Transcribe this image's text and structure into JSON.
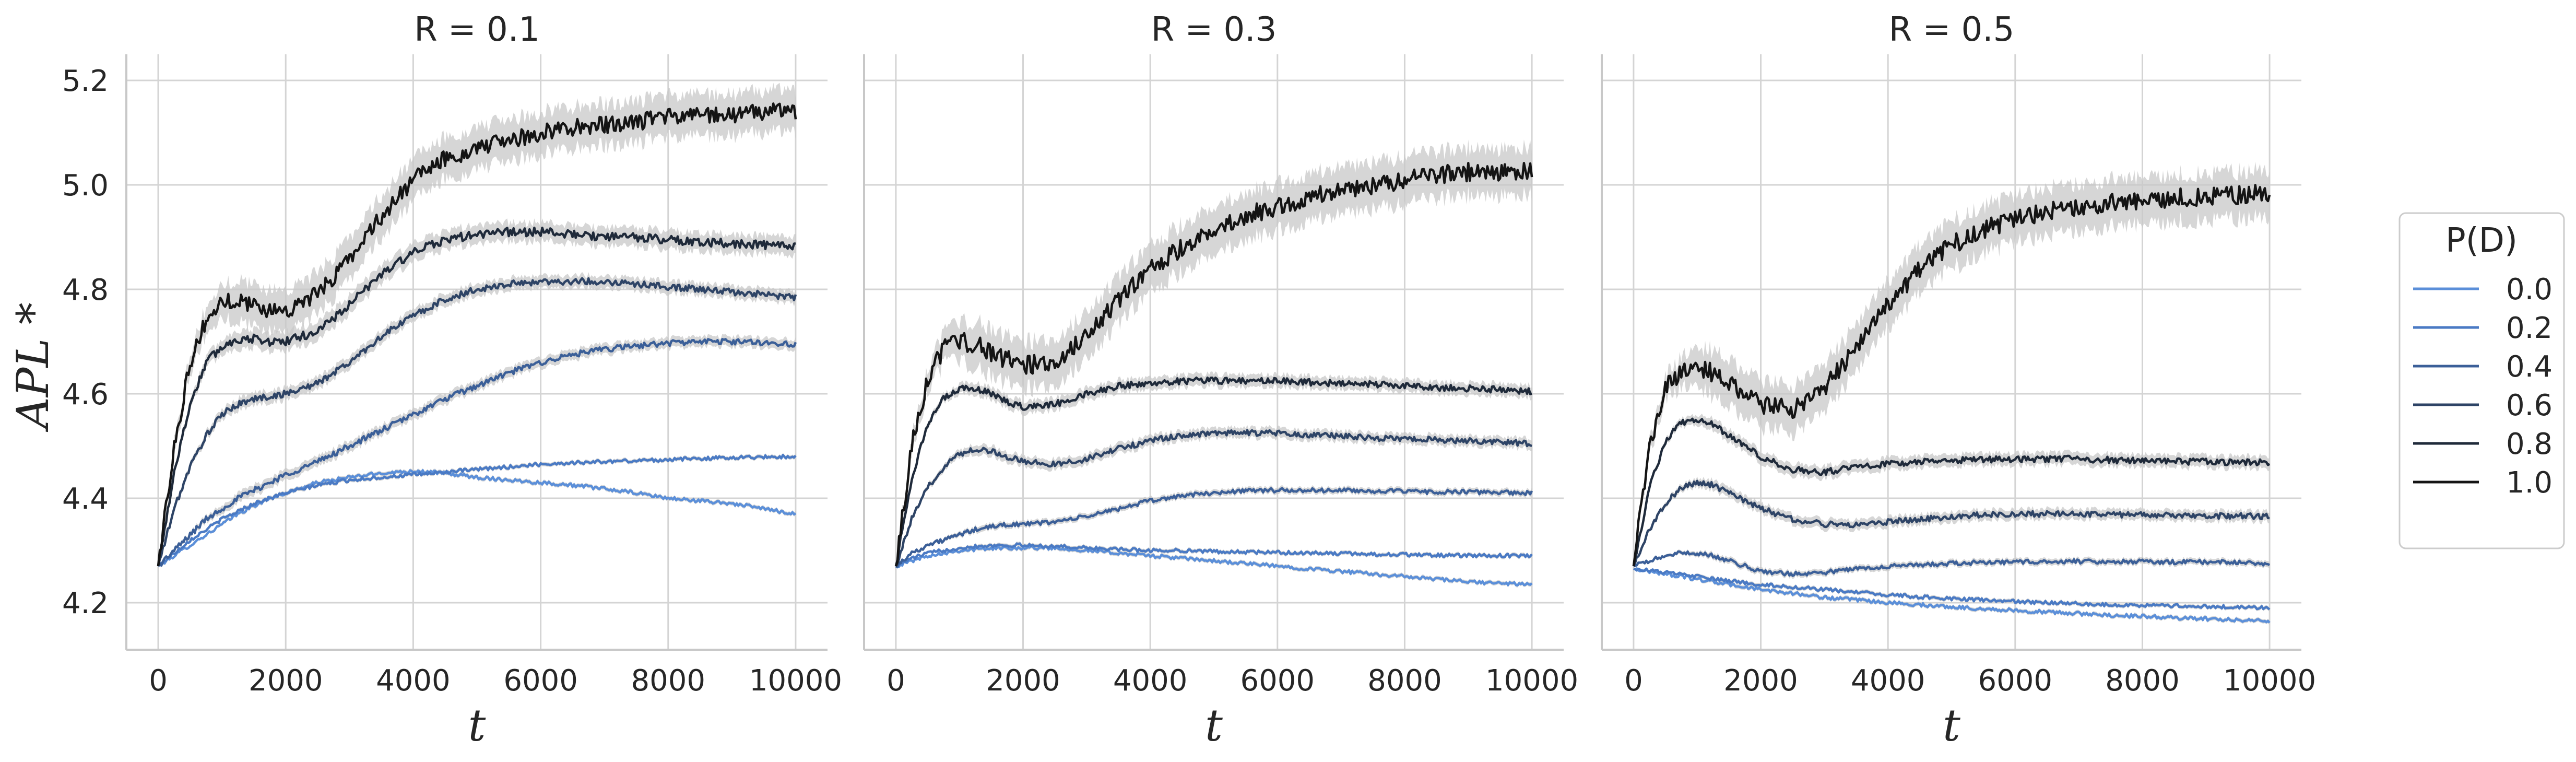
{
  "chart_data": [
    {
      "type": "line",
      "title": "R = 0.1",
      "xlabel": "t",
      "ylabel": "APL *",
      "xlim": [
        -500,
        10500
      ],
      "ylim": [
        4.11,
        5.25
      ],
      "xticks": [
        "0",
        "2000",
        "4000",
        "6000",
        "8000",
        "10000"
      ],
      "yticks": [
        "4.2",
        "4.4",
        "4.6",
        "4.8",
        "5.0",
        "5.2"
      ],
      "x": [
        0,
        250,
        500,
        750,
        1000,
        1250,
        1500,
        1750,
        2000,
        2500,
        3000,
        3500,
        4000,
        4500,
        5000,
        5500,
        6000,
        6500,
        7000,
        7500,
        8000,
        8500,
        9000,
        9500,
        10000
      ],
      "series": [
        {
          "name": "0.0",
          "values": [
            4.27,
            4.29,
            4.31,
            4.33,
            4.35,
            4.37,
            4.385,
            4.4,
            4.41,
            4.43,
            4.44,
            4.448,
            4.452,
            4.448,
            4.44,
            4.435,
            4.43,
            4.425,
            4.418,
            4.41,
            4.4,
            4.395,
            4.39,
            4.38,
            4.37
          ],
          "band": 0.004
        },
        {
          "name": "0.2",
          "values": [
            4.27,
            4.295,
            4.32,
            4.34,
            4.36,
            4.375,
            4.39,
            4.4,
            4.41,
            4.425,
            4.435,
            4.44,
            4.445,
            4.45,
            4.455,
            4.46,
            4.465,
            4.468,
            4.47,
            4.472,
            4.474,
            4.476,
            4.478,
            4.479,
            4.48
          ],
          "band": 0.004
        },
        {
          "name": "0.4",
          "values": [
            4.27,
            4.3,
            4.33,
            4.36,
            4.38,
            4.4,
            4.415,
            4.43,
            4.445,
            4.47,
            4.5,
            4.53,
            4.56,
            4.59,
            4.615,
            4.64,
            4.66,
            4.675,
            4.685,
            4.692,
            4.697,
            4.7,
            4.7,
            4.698,
            4.695
          ],
          "band": 0.01
        },
        {
          "name": "0.6",
          "values": [
            4.27,
            4.38,
            4.46,
            4.52,
            4.56,
            4.58,
            4.59,
            4.595,
            4.6,
            4.62,
            4.66,
            4.71,
            4.75,
            4.78,
            4.8,
            4.81,
            4.815,
            4.815,
            4.815,
            4.81,
            4.805,
            4.8,
            4.795,
            4.79,
            4.785
          ],
          "band": 0.012
        },
        {
          "name": "0.8",
          "values": [
            4.27,
            4.45,
            4.58,
            4.66,
            4.69,
            4.705,
            4.705,
            4.7,
            4.7,
            4.72,
            4.77,
            4.83,
            4.87,
            4.895,
            4.905,
            4.91,
            4.91,
            4.905,
            4.9,
            4.9,
            4.895,
            4.89,
            4.888,
            4.885,
            4.88
          ],
          "band": 0.018
        },
        {
          "name": "1.0",
          "values": [
            4.27,
            4.5,
            4.66,
            4.74,
            4.775,
            4.78,
            4.77,
            4.76,
            4.76,
            4.79,
            4.86,
            4.94,
            5.01,
            5.05,
            5.07,
            5.085,
            5.1,
            5.11,
            5.115,
            5.12,
            5.13,
            5.135,
            5.135,
            5.14,
            5.14
          ],
          "band": 0.04
        }
      ]
    },
    {
      "type": "line",
      "title": "R = 0.3",
      "xlabel": "t",
      "ylabel": "",
      "xlim": [
        -500,
        10500
      ],
      "ylim": [
        4.11,
        5.25
      ],
      "xticks": [
        "0",
        "2000",
        "4000",
        "6000",
        "8000",
        "10000"
      ],
      "yticks": [],
      "x": [
        0,
        250,
        500,
        750,
        1000,
        1250,
        1500,
        1750,
        2000,
        2500,
        3000,
        3500,
        4000,
        4500,
        5000,
        5500,
        6000,
        6500,
        7000,
        7500,
        8000,
        8500,
        9000,
        9500,
        10000
      ],
      "series": [
        {
          "name": "0.0",
          "values": [
            4.27,
            4.28,
            4.29,
            4.295,
            4.3,
            4.302,
            4.304,
            4.305,
            4.305,
            4.305,
            4.3,
            4.295,
            4.29,
            4.285,
            4.28,
            4.275,
            4.27,
            4.265,
            4.26,
            4.255,
            4.25,
            4.245,
            4.24,
            4.237,
            4.235
          ],
          "band": 0.004
        },
        {
          "name": "0.2",
          "values": [
            4.27,
            4.285,
            4.295,
            4.3,
            4.305,
            4.308,
            4.31,
            4.31,
            4.31,
            4.308,
            4.305,
            4.302,
            4.3,
            4.3,
            4.298,
            4.297,
            4.296,
            4.295,
            4.294,
            4.293,
            4.292,
            4.291,
            4.29,
            4.29,
            4.29
          ],
          "band": 0.004
        },
        {
          "name": "0.4",
          "values": [
            4.27,
            4.295,
            4.31,
            4.32,
            4.33,
            4.34,
            4.345,
            4.35,
            4.35,
            4.355,
            4.365,
            4.38,
            4.395,
            4.405,
            4.41,
            4.415,
            4.415,
            4.415,
            4.415,
            4.414,
            4.413,
            4.412,
            4.412,
            4.411,
            4.41
          ],
          "band": 0.006
        },
        {
          "name": "0.6",
          "values": [
            4.27,
            4.36,
            4.42,
            4.46,
            4.485,
            4.495,
            4.49,
            4.48,
            4.47,
            4.465,
            4.475,
            4.495,
            4.51,
            4.52,
            4.525,
            4.525,
            4.525,
            4.52,
            4.52,
            4.515,
            4.515,
            4.512,
            4.51,
            4.508,
            4.505
          ],
          "band": 0.01
        },
        {
          "name": "0.8",
          "values": [
            4.27,
            4.44,
            4.54,
            4.59,
            4.61,
            4.61,
            4.6,
            4.585,
            4.575,
            4.58,
            4.6,
            4.615,
            4.62,
            4.625,
            4.625,
            4.625,
            4.625,
            4.622,
            4.62,
            4.618,
            4.615,
            4.612,
            4.61,
            4.608,
            4.605
          ],
          "band": 0.012
        },
        {
          "name": "1.0",
          "values": [
            4.27,
            4.5,
            4.63,
            4.685,
            4.7,
            4.695,
            4.68,
            4.665,
            4.655,
            4.66,
            4.71,
            4.78,
            4.84,
            4.88,
            4.915,
            4.94,
            4.96,
            4.975,
            4.99,
            5.0,
            5.01,
            5.02,
            5.025,
            5.025,
            5.025
          ],
          "band": 0.045
        }
      ]
    },
    {
      "type": "line",
      "title": "R = 0.5",
      "xlabel": "t",
      "ylabel": "",
      "xlim": [
        -500,
        10500
      ],
      "ylim": [
        4.11,
        5.25
      ],
      "xticks": [
        "0",
        "2000",
        "4000",
        "6000",
        "8000",
        "10000"
      ],
      "yticks": [],
      "x": [
        0,
        250,
        500,
        750,
        1000,
        1250,
        1500,
        1750,
        2000,
        2500,
        3000,
        3500,
        4000,
        4500,
        5000,
        5500,
        6000,
        6500,
        7000,
        7500,
        8000,
        8500,
        9000,
        9500,
        10000
      ],
      "series": [
        {
          "name": "0.0",
          "values": [
            4.265,
            4.26,
            4.255,
            4.25,
            4.245,
            4.24,
            4.235,
            4.23,
            4.225,
            4.218,
            4.21,
            4.205,
            4.2,
            4.196,
            4.192,
            4.188,
            4.185,
            4.182,
            4.179,
            4.176,
            4.174,
            4.171,
            4.169,
            4.167,
            4.165
          ],
          "band": 0.004
        },
        {
          "name": "0.2",
          "values": [
            4.265,
            4.262,
            4.258,
            4.254,
            4.25,
            4.245,
            4.242,
            4.238,
            4.235,
            4.23,
            4.225,
            4.22,
            4.215,
            4.211,
            4.208,
            4.205,
            4.202,
            4.2,
            4.198,
            4.196,
            4.195,
            4.194,
            4.193,
            4.191,
            4.19
          ],
          "band": 0.004
        },
        {
          "name": "0.4",
          "values": [
            4.27,
            4.28,
            4.29,
            4.295,
            4.295,
            4.29,
            4.28,
            4.27,
            4.26,
            4.255,
            4.258,
            4.265,
            4.27,
            4.272,
            4.275,
            4.277,
            4.278,
            4.279,
            4.279,
            4.279,
            4.279,
            4.278,
            4.278,
            4.277,
            4.275
          ],
          "band": 0.006
        },
        {
          "name": "0.6",
          "values": [
            4.27,
            4.34,
            4.39,
            4.42,
            4.43,
            4.425,
            4.41,
            4.395,
            4.38,
            4.36,
            4.35,
            4.35,
            4.355,
            4.36,
            4.365,
            4.368,
            4.37,
            4.37,
            4.37,
            4.369,
            4.368,
            4.367,
            4.366,
            4.366,
            4.365
          ],
          "band": 0.01
        },
        {
          "name": "0.8",
          "values": [
            4.27,
            4.42,
            4.51,
            4.545,
            4.55,
            4.54,
            4.52,
            4.5,
            4.48,
            4.455,
            4.45,
            4.46,
            4.465,
            4.47,
            4.472,
            4.474,
            4.475,
            4.475,
            4.475,
            4.473,
            4.472,
            4.471,
            4.47,
            4.469,
            4.468
          ],
          "band": 0.012
        },
        {
          "name": "1.0",
          "values": [
            4.27,
            4.5,
            4.61,
            4.645,
            4.65,
            4.64,
            4.62,
            4.595,
            4.58,
            4.57,
            4.61,
            4.69,
            4.77,
            4.84,
            4.885,
            4.915,
            4.935,
            4.95,
            4.96,
            4.965,
            4.97,
            4.975,
            4.978,
            4.98,
            4.985
          ],
          "band": 0.045
        }
      ]
    }
  ],
  "legend": {
    "title": "P(D)",
    "placement": "right",
    "entries": [
      "0.0",
      "0.2",
      "0.4",
      "0.6",
      "0.8",
      "1.0"
    ]
  },
  "colors": {
    "0.0": "#5b8fd9",
    "0.2": "#4a7ac4",
    "0.4": "#3b5f98",
    "0.6": "#2e4466",
    "0.8": "#1f2a3a",
    "1.0": "#141414",
    "band": "#c8c8c8",
    "grid": "#d4d4d4",
    "axis": "#c8c8c8"
  }
}
